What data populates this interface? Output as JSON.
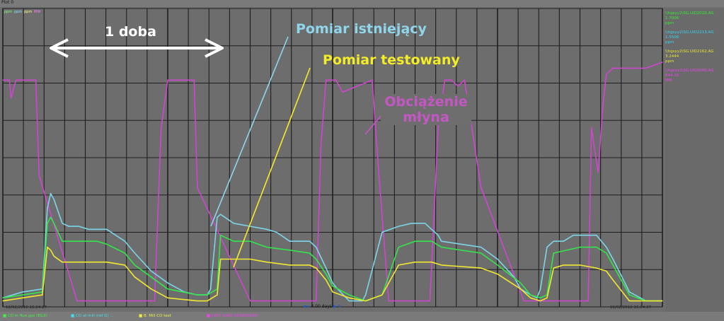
{
  "window": {
    "title": "Plot 0"
  },
  "top_legend": [
    {
      "label": "ppm",
      "color": "#7fff7f"
    },
    {
      "label": "ppm",
      "color": "#7fe6ff"
    },
    {
      "label": "ppm",
      "color": "#ffff7f"
    },
    {
      "label": "MW",
      "color": "#ff7fff"
    }
  ],
  "side_panel": [
    {
      "tag": "\\\\hgsyy2\\SG.UID2020.AG",
      "value": "1.7006",
      "unit": "ppm",
      "color": "#33ee33"
    },
    {
      "tag": "\\\\hgsyy2\\SG.UID2213.AG",
      "value": "1.5506",
      "unit": "ppm",
      "color": "#33d6ee"
    },
    {
      "tag": "\\\\hgsyy2\\SG.UID2162.AG",
      "value": "3.2444",
      "unit": "ppm",
      "color": "#e6e633"
    },
    {
      "tag": "\\\\hgsyy2\\SG.UID0000.AG",
      "value": "644.26",
      "unit": "MW",
      "color": "#ee44ee"
    }
  ],
  "bottom_legend": [
    {
      "label": "CO in flue gas (EG3)",
      "color": "#44ee44"
    },
    {
      "label": "CO at mill (ref G) ...",
      "color": "#44ddee"
    },
    {
      "label": "B. Mill CO test",
      "color": "#eeee44"
    },
    {
      "label": "UNIT LOAD GENERATED",
      "color": "#ee44ee"
    }
  ],
  "timestamps": {
    "start": "12/02/2016 16:24:27",
    "end": "16/02/2016 16:24:27"
  },
  "nav": {
    "span": "4.00 days"
  },
  "annotations": {
    "day": "1 doba",
    "existing": "Pomiar istniejący",
    "tested": "Pomiar testowany",
    "load_line1": "Obciążenie",
    "load_line2": "młyna"
  },
  "colors": {
    "cyan": "#7cd6e8",
    "yellow": "#f2e830",
    "magenta": "#cf46cf",
    "green": "#33e64a",
    "grid": "#1e1e1e",
    "bg": "#6e6e6e"
  },
  "chart_data": {
    "type": "line",
    "x_unit": "days",
    "xlim": [
      0,
      4
    ],
    "ylim": [
      0,
      100
    ],
    "grid": true,
    "legend_position": "bottom",
    "series": [
      {
        "name": "UNIT LOAD GENERATED",
        "color": "#cf46cf",
        "x": [
          0,
          0.04,
          0.05,
          0.08,
          0.09,
          0.12,
          0.17,
          0.2,
          0.22,
          0.45,
          0.5,
          0.92,
          0.96,
          1.0,
          1.02,
          1.05,
          1.12,
          1.16,
          1.18,
          1.5,
          1.55,
          1.9,
          1.93,
          1.96,
          1.99,
          2.02,
          2.06,
          2.24,
          2.28,
          2.34,
          2.38,
          2.45,
          2.59,
          2.64,
          2.68,
          2.72,
          2.76,
          2.8,
          2.9,
          3.16,
          3.2,
          3.3,
          3.35,
          3.55,
          3.57,
          3.61,
          3.64,
          3.66,
          3.7,
          3.8,
          3.9,
          4.0
        ],
        "values": [
          76,
          76,
          70,
          76,
          76,
          76,
          76,
          76,
          44,
          2,
          2,
          2,
          60,
          76,
          76,
          76,
          76,
          76,
          40,
          2,
          2,
          2,
          55,
          76,
          76,
          76,
          72,
          76,
          45,
          2,
          2,
          2,
          2,
          60,
          76,
          76,
          74,
          76,
          40,
          2,
          2,
          2,
          2,
          2,
          60,
          45,
          68,
          78,
          80,
          80,
          80,
          82
        ]
      },
      {
        "name": "CO at mill (ref G) ...",
        "color": "#7cd6e8",
        "x": [
          0,
          0.12,
          0.24,
          0.27,
          0.29,
          0.31,
          0.36,
          0.4,
          0.46,
          0.52,
          0.57,
          0.63,
          0.74,
          0.8,
          0.9,
          1.0,
          1.1,
          1.18,
          1.24,
          1.26,
          1.3,
          1.32,
          1.4,
          1.5,
          1.6,
          1.66,
          1.74,
          1.8,
          1.86,
          1.9,
          1.96,
          2.0,
          2.03,
          2.1,
          2.14,
          2.18,
          2.2,
          2.3,
          2.4,
          2.48,
          2.56,
          2.6,
          2.64,
          2.66,
          2.9,
          3.0,
          3.1,
          3.14,
          3.2,
          3.24,
          3.26,
          3.3,
          3.34,
          3.4,
          3.46,
          3.5,
          3.55,
          3.6,
          3.66,
          3.7,
          3.8,
          3.9,
          4.0
        ],
        "values": [
          3,
          5,
          6,
          33,
          38,
          36,
          28,
          27,
          27,
          26,
          26,
          26,
          22,
          18,
          12,
          8,
          5,
          4,
          4,
          6,
          30,
          31,
          28,
          27,
          26,
          25,
          22,
          22,
          22,
          20,
          13,
          8,
          6,
          2,
          2,
          2,
          4,
          25,
          27,
          28,
          28,
          26,
          24,
          22,
          20,
          16,
          10,
          6,
          4,
          3,
          6,
          20,
          22,
          22,
          24,
          24,
          24,
          24,
          20,
          16,
          5,
          2,
          2
        ]
      },
      {
        "name": "CO in flue gas (EG3)",
        "color": "#33e64a",
        "x": [
          0,
          0.12,
          0.24,
          0.27,
          0.29,
          0.31,
          0.36,
          0.46,
          0.57,
          0.63,
          0.74,
          0.8,
          0.9,
          1.0,
          1.18,
          1.24,
          1.3,
          1.32,
          1.4,
          1.5,
          1.6,
          1.74,
          1.86,
          1.9,
          1.96,
          2.0,
          2.1,
          2.2,
          2.3,
          2.4,
          2.5,
          2.6,
          2.66,
          2.9,
          3.0,
          3.14,
          3.2,
          3.26,
          3.3,
          3.34,
          3.5,
          3.6,
          3.66,
          3.7,
          3.8,
          3.9,
          4.0
        ],
        "values": [
          3,
          4,
          5,
          28,
          30,
          28,
          22,
          22,
          22,
          21,
          18,
          14,
          10,
          6,
          4,
          4,
          6,
          24,
          22,
          22,
          20,
          19,
          18,
          16,
          11,
          7,
          4,
          2,
          4,
          20,
          22,
          22,
          20,
          18,
          14,
          8,
          4,
          3,
          4,
          18,
          20,
          20,
          18,
          14,
          4,
          2,
          2
        ]
      },
      {
        "name": "B. Mill CO test",
        "color": "#f2e830",
        "x": [
          0,
          0.12,
          0.24,
          0.27,
          0.29,
          0.31,
          0.36,
          0.46,
          0.57,
          0.63,
          0.74,
          0.8,
          0.9,
          1.0,
          1.18,
          1.24,
          1.3,
          1.32,
          1.4,
          1.5,
          1.6,
          1.74,
          1.86,
          1.9,
          1.96,
          2.0,
          2.1,
          2.2,
          2.3,
          2.4,
          2.5,
          2.6,
          2.66,
          2.9,
          3.0,
          3.14,
          3.2,
          3.26,
          3.3,
          3.34,
          3.4,
          3.5,
          3.6,
          3.66,
          3.7,
          3.8,
          3.9,
          4.0
        ],
        "values": [
          2,
          3,
          4,
          20,
          19,
          17,
          15,
          15,
          15,
          15,
          14,
          10,
          6,
          3,
          2,
          2,
          4,
          16,
          16,
          16,
          15,
          14,
          14,
          13,
          9,
          5,
          3,
          2,
          4,
          14,
          15,
          15,
          14,
          13,
          11,
          6,
          3,
          2,
          3,
          13,
          14,
          14,
          13,
          12,
          9,
          2,
          2,
          2
        ]
      }
    ]
  }
}
